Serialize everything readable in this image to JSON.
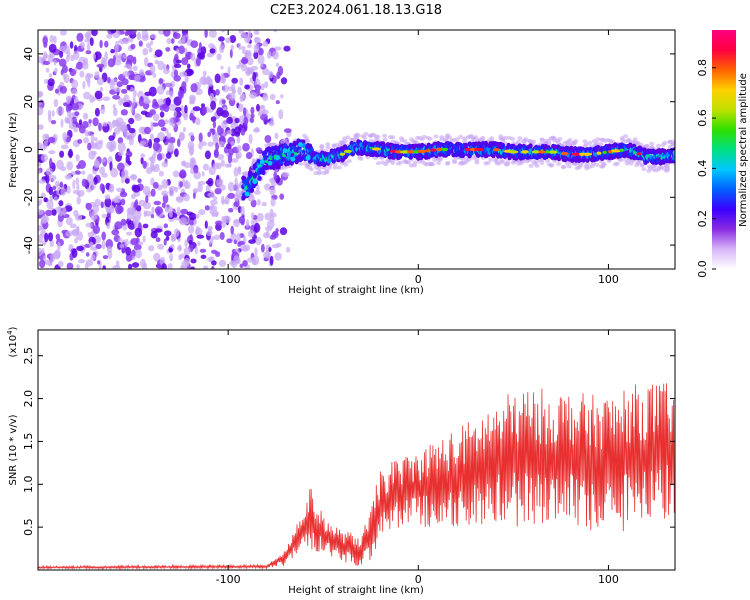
{
  "title": "C2E3.2024.061.18.13.G18",
  "colors": {
    "snr_line": "#e83030",
    "scatter_faint": "#c8a6f4",
    "scatter_mid": "#8a3cf0",
    "scatter_strong": "#5a00e0"
  },
  "chart_data": [
    {
      "type": "heatmap",
      "title": "C2E3.2024.061.18.13.G18",
      "xlabel": "Height of straight line (km)",
      "ylabel": "Frequency (Hz)",
      "xlim": [
        -200,
        135
      ],
      "ylim": [
        -50,
        50
      ],
      "xticks": [
        -100,
        0,
        100
      ],
      "yticks": [
        -40,
        -20,
        0,
        20,
        40
      ],
      "noise_region_x": [
        -200,
        -75
      ],
      "ridge_x": [
        -90,
        -85,
        -80,
        -70,
        -60,
        -55,
        -50,
        -45,
        -40,
        -35,
        -30,
        -20,
        -10,
        0,
        10,
        20,
        30,
        40,
        50,
        60,
        70,
        80,
        90,
        100,
        110,
        120,
        130,
        135
      ],
      "ridge_y": [
        -16,
        -10,
        -4,
        -2,
        0,
        -4,
        -4,
        -3,
        -2,
        0,
        1,
        0,
        -1,
        -1,
        0,
        0,
        0,
        0,
        -1,
        -1,
        -1,
        -2,
        -2,
        -1,
        0,
        -3,
        -3,
        -2
      ],
      "colorbar": {
        "label": "Normalized spectral amplitude",
        "range": [
          0,
          0.95
        ],
        "ticks": [
          "0.0",
          "0.2",
          "0.4",
          "0.6",
          "0.8"
        ],
        "colors": [
          "#ffffff",
          "#d8b4f8",
          "#8a2be2",
          "#3a00ff",
          "#0060ff",
          "#00c8ff",
          "#00e080",
          "#30e000",
          "#c0e000",
          "#ffd000",
          "#ff6000",
          "#ff0040",
          "#ff0080"
        ]
      }
    },
    {
      "type": "line",
      "xlabel": "Height of straight line (km)",
      "ylabel": "SNR (10 * v/v)",
      "scale_label": "(x10",
      "scale_exp": "4",
      "scale_close": ")",
      "xlim": [
        -200,
        135
      ],
      "ylim": [
        0,
        2.8
      ],
      "xticks": [
        -100,
        0,
        100
      ],
      "yticks": [
        "0.5",
        "1.0",
        "1.5",
        "2.0",
        "2.5"
      ],
      "envelope_x": [
        -200,
        -80,
        -70,
        -60,
        -57,
        -50,
        -45,
        -40,
        -30,
        -25,
        -20,
        -10,
        0,
        10,
        20,
        30,
        40,
        50,
        60,
        70,
        80,
        90,
        100,
        110,
        120,
        130,
        135
      ],
      "envelope_center": [
        0.03,
        0.04,
        0.15,
        0.5,
        0.6,
        0.42,
        0.35,
        0.28,
        0.22,
        0.4,
        0.75,
        0.9,
        0.95,
        1.0,
        1.05,
        1.15,
        1.25,
        1.3,
        1.3,
        1.3,
        1.3,
        1.25,
        1.25,
        1.3,
        1.35,
        1.4,
        1.4
      ],
      "envelope_halfwidth": [
        0.015,
        0.02,
        0.1,
        0.25,
        0.38,
        0.22,
        0.2,
        0.18,
        0.2,
        0.3,
        0.45,
        0.42,
        0.45,
        0.55,
        0.6,
        0.65,
        0.7,
        0.8,
        0.85,
        0.8,
        0.8,
        0.8,
        0.8,
        0.85,
        0.85,
        0.8,
        0.8
      ]
    }
  ]
}
